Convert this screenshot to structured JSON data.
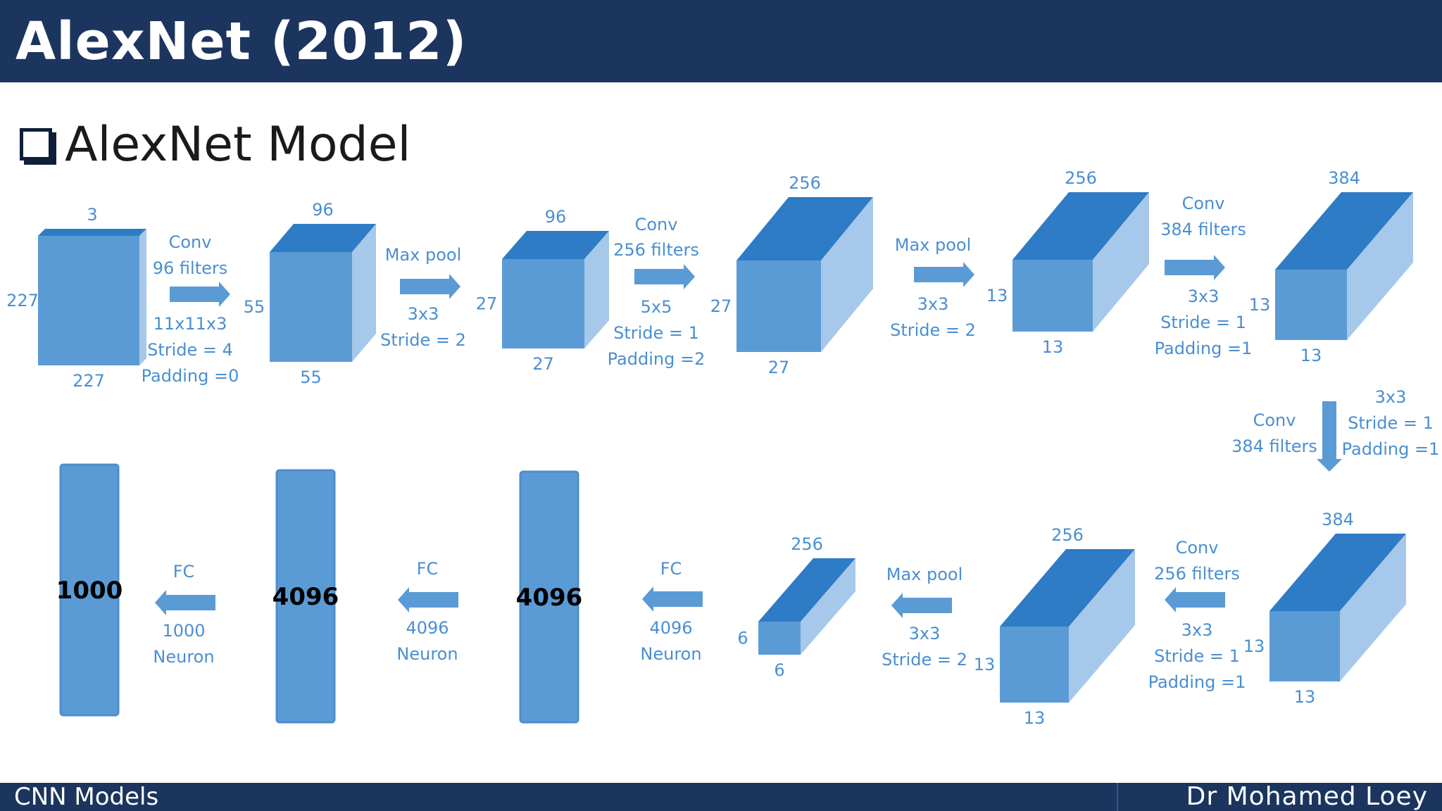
{
  "header": {
    "title": "AlexNet (2012)"
  },
  "section": {
    "title": "AlexNet Model"
  },
  "footer": {
    "left": "CNN Models",
    "right": "Dr Mohamed Loey"
  },
  "colors": {
    "header_bg": "#1b355f",
    "front": "#5b9bd5",
    "top": "#2e7bc6",
    "side": "#a6c8ea",
    "label": "#4a8fd1"
  },
  "blocks": [
    {
      "id": "input",
      "top": "3",
      "left": "227",
      "bottom": "227"
    },
    {
      "id": "conv1",
      "top": "96",
      "left": "55",
      "bottom": "55"
    },
    {
      "id": "pool1",
      "top": "96",
      "left": "27",
      "bottom": "27"
    },
    {
      "id": "conv2",
      "top": "256",
      "left": "27",
      "bottom": "27"
    },
    {
      "id": "pool2",
      "top": "256",
      "left": "13",
      "bottom": "13"
    },
    {
      "id": "conv3",
      "top": "384",
      "left": "13",
      "bottom": "13"
    },
    {
      "id": "conv4",
      "top": "384",
      "left": "13",
      "bottom": "13"
    },
    {
      "id": "conv5",
      "top": "256",
      "left": "13",
      "bottom": "13"
    },
    {
      "id": "pool3",
      "top": "256",
      "left": "6",
      "bottom": "6"
    }
  ],
  "fc_layers": [
    {
      "id": "fc8",
      "value": "1000"
    },
    {
      "id": "fc7",
      "value": "4096"
    },
    {
      "id": "fc6",
      "value": "4096"
    }
  ],
  "operations": [
    {
      "id": "op1",
      "lines": [
        "Conv",
        "96 filters",
        "11x11x3",
        "Stride = 4",
        "Padding =0"
      ]
    },
    {
      "id": "op2",
      "lines": [
        "Max pool",
        "3x3",
        "Stride = 2"
      ]
    },
    {
      "id": "op3",
      "lines": [
        "Conv",
        "256 filters",
        "5x5",
        "Stride = 1",
        "Padding =2"
      ]
    },
    {
      "id": "op4",
      "lines": [
        "Max pool",
        "3x3",
        "Stride = 2"
      ]
    },
    {
      "id": "op5",
      "lines": [
        "Conv",
        "384 filters",
        "3x3",
        "Stride = 1",
        "Padding =1"
      ]
    },
    {
      "id": "op6",
      "lines": [
        "Conv",
        "384 filters",
        "3x3",
        "Stride = 1",
        "Padding =1"
      ]
    },
    {
      "id": "op7",
      "lines": [
        "Conv",
        "256 filters",
        "3x3",
        "Stride = 1",
        "Padding =1"
      ]
    },
    {
      "id": "op8",
      "lines": [
        "Max pool",
        "3x3",
        "Stride = 2"
      ]
    },
    {
      "id": "op9",
      "lines": [
        "FC",
        "4096",
        "Neuron"
      ]
    },
    {
      "id": "op10",
      "lines": [
        "FC",
        "4096",
        "Neuron"
      ]
    },
    {
      "id": "op11",
      "lines": [
        "FC",
        "1000",
        "Neuron"
      ]
    }
  ]
}
